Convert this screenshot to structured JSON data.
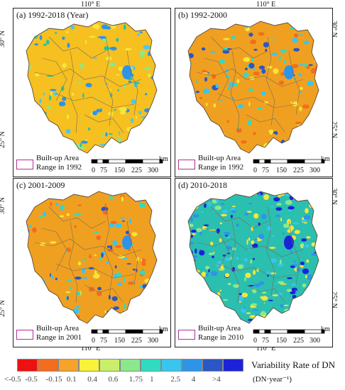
{
  "coordinates": {
    "lon_label": "110° E",
    "lat30_label": "30° N",
    "lat25_label": "25° N"
  },
  "panels": [
    {
      "title": "(a) 1992-2018 (Year)",
      "legend_line1": "Built-up Area",
      "legend_line2": "Range in 1992",
      "has_scale": true,
      "fill": "#f5c020",
      "theme": "yellow"
    },
    {
      "title": "(b) 1992-2000",
      "legend_line1": "Built-up Area",
      "legend_line2": "Range in 1992",
      "has_scale": true,
      "fill": "#f0a020",
      "theme": "orange"
    },
    {
      "title": "(c) 2001-2009",
      "legend_line1": "Built-up Area",
      "legend_line2": "Range in 2001",
      "has_scale": true,
      "fill": "#f0a020",
      "theme": "orange"
    },
    {
      "title": "(d) 2010-2018",
      "legend_line1": "Built-up Area",
      "legend_line2": "Range in 2010",
      "has_scale": true,
      "fill": "#2bbfb0",
      "theme": "cyan"
    }
  ],
  "scale": {
    "unit": "km",
    "ticks": [
      "0",
      "75",
      "150",
      "225",
      "300"
    ]
  },
  "colorbar": {
    "title": "Variability Rate of DN",
    "unit": "(DN·year⁻¹)",
    "colors": [
      "#ee1111",
      "#f26d1d",
      "#f5a32a",
      "#f7f23a",
      "#c9ef6a",
      "#8be88c",
      "#2fdcc0",
      "#38c6f0",
      "#2e94e8",
      "#2a56c8",
      "#1c22d8"
    ],
    "tick_labels": [
      "<-0.5",
      "-0.5",
      "-0.15",
      "0.1",
      "0.4",
      "0.6",
      "1.75",
      "1",
      "2.5",
      "4",
      ">4"
    ]
  }
}
